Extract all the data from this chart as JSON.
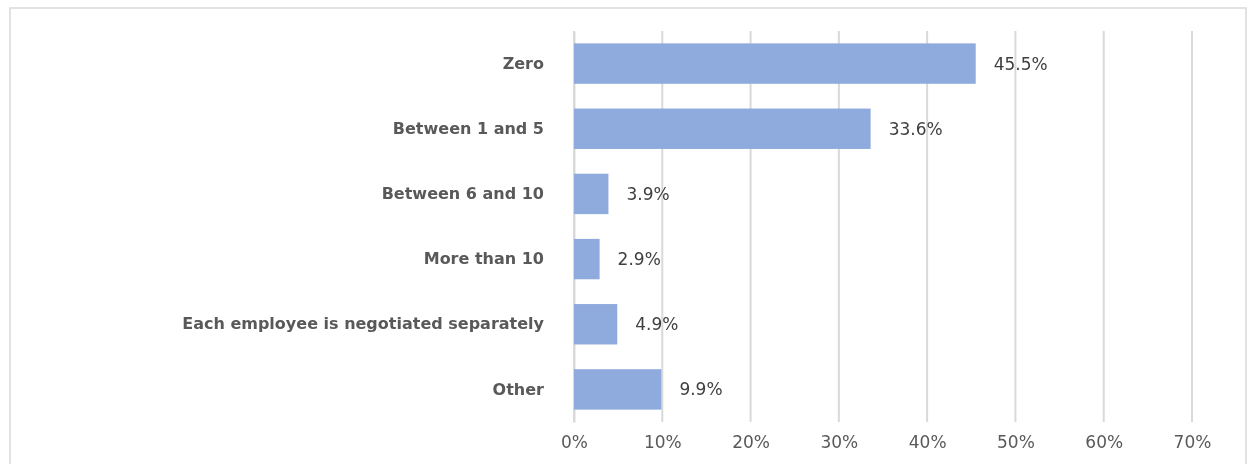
{
  "chart_data": {
    "type": "bar",
    "orientation": "horizontal",
    "categories": [
      "Zero",
      "Between 1 and 5",
      "Between 6 and 10",
      "More than 10",
      "Each employee is negotiated separately",
      "Other"
    ],
    "values": [
      45.5,
      33.6,
      3.9,
      2.9,
      4.9,
      9.9
    ],
    "value_labels": [
      "45.5%",
      "33.6%",
      "3.9%",
      "2.9%",
      "4.9%",
      "9.9%"
    ],
    "color": "#8faadc",
    "xlim": [
      0,
      70
    ],
    "xticks": [
      {
        "value": 0,
        "label": "0%"
      },
      {
        "value": 10,
        "label": "10%"
      },
      {
        "value": 20,
        "label": "20%"
      },
      {
        "value": 30,
        "label": "30%"
      },
      {
        "value": 40,
        "label": "40%"
      },
      {
        "value": 50,
        "label": "50%"
      },
      {
        "value": 60,
        "label": "60%"
      },
      {
        "value": 70,
        "label": "70%"
      }
    ],
    "grid": "x"
  }
}
